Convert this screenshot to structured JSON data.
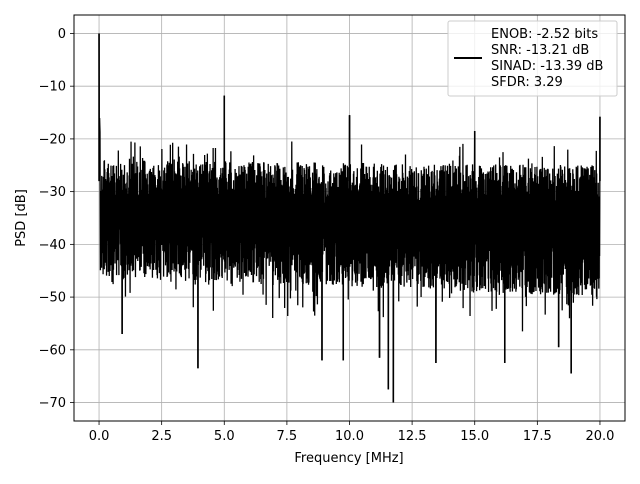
{
  "chart_data": {
    "type": "line",
    "title": "",
    "xlabel": "Frequency [MHz]",
    "ylabel": "PSD [dB]",
    "xlim": [
      -1.0,
      21.0
    ],
    "ylim": [
      -73.5,
      3.5
    ],
    "xticks": [
      0.0,
      2.5,
      5.0,
      7.5,
      10.0,
      12.5,
      15.0,
      17.5,
      20.0
    ],
    "xtick_labels": [
      "0.0",
      "2.5",
      "5.0",
      "7.5",
      "10.0",
      "12.5",
      "15.0",
      "17.5",
      "20.0"
    ],
    "yticks": [
      0,
      -10,
      -20,
      -30,
      -40,
      -50,
      -60,
      -70
    ],
    "ytick_labels": [
      "0",
      "−10",
      "−20",
      "−30",
      "−40",
      "−50",
      "−60",
      "−70"
    ],
    "grid": true,
    "legend_position": "upper-right",
    "legend_lines": [
      "ENOB: -2.52 bits",
      "SNR: -13.21 dB",
      "SINAD: -13.39 dB",
      "SFDR: 3.29"
    ],
    "series": [
      {
        "color": "#000000",
        "noise_floor": {
          "x_range": [
            0.0,
            20.0
          ],
          "upper_envelope": [
            -18.0,
            -20.0
          ],
          "lower_envelope": [
            -57.0,
            -62.0
          ],
          "typical_upper": -24.0,
          "typical_lower": -46.0
        },
        "peaks": [
          {
            "x": 0.0,
            "y": 0.0
          },
          {
            "x": 5.0,
            "y": -11.8
          },
          {
            "x": 10.0,
            "y": -15.5
          },
          {
            "x": 15.0,
            "y": -18.5
          },
          {
            "x": 20.0,
            "y": -15.8
          }
        ],
        "low_spikes": [
          {
            "x": 0.92,
            "y": -57.0
          },
          {
            "x": 3.95,
            "y": -63.5
          },
          {
            "x": 8.9,
            "y": -62.0
          },
          {
            "x": 9.75,
            "y": -62.0
          },
          {
            "x": 11.2,
            "y": -61.5
          },
          {
            "x": 11.55,
            "y": -67.5
          },
          {
            "x": 11.75,
            "y": -70.0
          },
          {
            "x": 13.45,
            "y": -62.5
          },
          {
            "x": 16.2,
            "y": -62.5
          },
          {
            "x": 18.35,
            "y": -59.5
          },
          {
            "x": 18.85,
            "y": -64.5
          }
        ]
      }
    ]
  }
}
